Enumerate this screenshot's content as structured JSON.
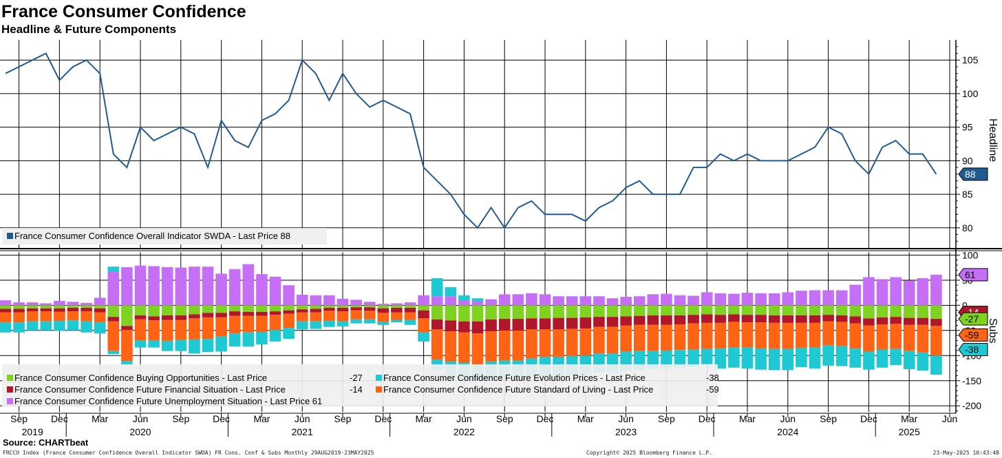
{
  "header": {
    "title": "France Consumer Confidence",
    "subtitle": "Headline & Future Components"
  },
  "footer": {
    "source": "Source: CHARTbeat",
    "index_note": "FRCCO Index (France Consumer Confidence Overall Indicator SWDA) FR Cons. Conf & Subs  Monthly 29AUG2019-23MAY2025",
    "copyright": "Copyright© 2025 Bloomberg Finance L.P.",
    "timestamp": "23-May-2025 10:43:48"
  },
  "colors": {
    "headline": "#1f5a91",
    "buying": "#7ed321",
    "financial": "#b0172a",
    "unemployment": "#c46ff5",
    "evolution_prices": "#1ec9d3",
    "standard_of_living": "#ff6414",
    "grid": "#000000"
  },
  "chart_data": [
    {
      "type": "line",
      "axis_title": "Headline",
      "ylim": [
        77,
        108
      ],
      "yticks": [
        80,
        85,
        90,
        95,
        100,
        105
      ],
      "legend_position": "bottom-left",
      "series": [
        {
          "name": "France Consumer Confidence Overall Indicator SWDA - Last Price 88",
          "last_value": 88,
          "x": [
            "2019-08",
            "2019-09",
            "2019-10",
            "2019-11",
            "2019-12",
            "2020-01",
            "2020-02",
            "2020-03",
            "2020-04",
            "2020-05",
            "2020-06",
            "2020-07",
            "2020-08",
            "2020-09",
            "2020-10",
            "2020-11",
            "2020-12",
            "2021-01",
            "2021-02",
            "2021-03",
            "2021-04",
            "2021-05",
            "2021-06",
            "2021-07",
            "2021-08",
            "2021-09",
            "2021-10",
            "2021-11",
            "2021-12",
            "2022-01",
            "2022-02",
            "2022-03",
            "2022-04",
            "2022-05",
            "2022-06",
            "2022-07",
            "2022-08",
            "2022-09",
            "2022-10",
            "2022-11",
            "2022-12",
            "2023-01",
            "2023-02",
            "2023-03",
            "2023-04",
            "2023-05",
            "2023-06",
            "2023-07",
            "2023-08",
            "2023-09",
            "2023-10",
            "2023-11",
            "2023-12",
            "2024-01",
            "2024-02",
            "2024-03",
            "2024-04",
            "2024-05",
            "2024-06",
            "2024-07",
            "2024-08",
            "2024-09",
            "2024-10",
            "2024-11",
            "2024-12",
            "2025-01",
            "2025-02",
            "2025-03",
            "2025-04",
            "2025-05"
          ],
          "values": [
            103,
            104,
            105,
            106,
            102,
            104,
            105,
            103,
            91,
            89,
            95,
            93,
            94,
            95,
            94,
            89,
            96,
            93,
            92,
            96,
            97,
            99,
            105,
            103,
            99,
            103,
            100,
            98,
            99,
            98,
            97,
            89,
            87,
            85,
            82,
            80,
            83,
            80,
            83,
            84,
            82,
            82,
            82,
            81,
            83,
            84,
            86,
            87,
            85,
            85,
            85,
            89,
            89,
            91,
            90,
            91,
            90,
            90,
            90,
            91,
            92,
            95,
            94,
            90,
            88,
            92,
            93,
            91,
            91,
            88
          ]
        }
      ]
    },
    {
      "type": "bar",
      "stacked": true,
      "axis_title": "Subs",
      "ylim": [
        -212,
        106
      ],
      "yticks": [
        100,
        50,
        0,
        -50,
        -100,
        -150,
        -200
      ],
      "ytick_labels": [
        "100",
        "50",
        "0",
        "-50",
        "-100",
        "-150",
        "-200"
      ],
      "x": [
        "2019-08",
        "2019-09",
        "2019-10",
        "2019-11",
        "2019-12",
        "2020-01",
        "2020-02",
        "2020-03",
        "2020-04",
        "2020-05",
        "2020-06",
        "2020-07",
        "2020-08",
        "2020-09",
        "2020-10",
        "2020-11",
        "2020-12",
        "2021-01",
        "2021-02",
        "2021-03",
        "2021-04",
        "2021-05",
        "2021-06",
        "2021-07",
        "2021-08",
        "2021-09",
        "2021-10",
        "2021-11",
        "2021-12",
        "2022-01",
        "2022-02",
        "2022-03",
        "2022-04",
        "2022-05",
        "2022-06",
        "2022-07",
        "2022-08",
        "2022-09",
        "2022-10",
        "2022-11",
        "2022-12",
        "2023-01",
        "2023-02",
        "2023-03",
        "2023-04",
        "2023-05",
        "2023-06",
        "2023-07",
        "2023-08",
        "2023-09",
        "2023-10",
        "2023-11",
        "2023-12",
        "2024-01",
        "2024-02",
        "2024-03",
        "2024-04",
        "2024-05",
        "2024-06",
        "2024-07",
        "2024-08",
        "2024-09",
        "2024-10",
        "2024-11",
        "2024-12",
        "2025-01",
        "2025-02",
        "2025-03",
        "2025-04",
        "2025-05"
      ],
      "series": [
        {
          "name": "France Consumer Confidence Buying Opportunities - Last Price",
          "last_value": -27,
          "color_key": "buying",
          "values": [
            -7,
            -7,
            -6,
            -6,
            -6,
            -5,
            -5,
            -6,
            -23,
            -41,
            -20,
            -22,
            -20,
            -20,
            -18,
            -15,
            -15,
            -12,
            -13,
            -13,
            -12,
            -10,
            -8,
            -7,
            -5,
            -5,
            -4,
            -4,
            -6,
            -5,
            -5,
            -10,
            -28,
            -30,
            -32,
            -32,
            -28,
            -27,
            -27,
            -26,
            -26,
            -25,
            -25,
            -24,
            -23,
            -23,
            -22,
            -21,
            -20,
            -20,
            -20,
            -19,
            -18,
            -19,
            -18,
            -19,
            -19,
            -20,
            -20,
            -20,
            -20,
            -19,
            -20,
            -22,
            -26,
            -24,
            -23,
            -25,
            -25,
            -27
          ]
        },
        {
          "name": "France Consumer Confidence Future Financial Situation - Last Price",
          "last_value": -14,
          "color_key": "financial",
          "values": [
            -7,
            -7,
            -6,
            -6,
            -7,
            -7,
            -7,
            -8,
            -9,
            -8,
            -8,
            -8,
            -9,
            -9,
            -8,
            -9,
            -9,
            -9,
            -8,
            -8,
            -7,
            -7,
            -6,
            -7,
            -6,
            -7,
            -6,
            -7,
            -9,
            -9,
            -9,
            -16,
            -20,
            -22,
            -22,
            -24,
            -24,
            -23,
            -23,
            -22,
            -22,
            -23,
            -22,
            -22,
            -20,
            -20,
            -18,
            -18,
            -19,
            -19,
            -18,
            -17,
            -17,
            -16,
            -15,
            -15,
            -15,
            -15,
            -15,
            -15,
            -15,
            -13,
            -13,
            -14,
            -14,
            -14,
            -14,
            -14,
            -14,
            -14
          ]
        },
        {
          "name": "France Consumer Confidence Future Standard of Living - Last Price",
          "last_value": -59,
          "color_key": "standard_of_living",
          "values": [
            -20,
            -20,
            -20,
            -20,
            -18,
            -18,
            -20,
            -20,
            -59,
            -62,
            -42,
            -40,
            -42,
            -40,
            -42,
            -43,
            -38,
            -35,
            -33,
            -32,
            -30,
            -28,
            -18,
            -18,
            -20,
            -20,
            -18,
            -17,
            -18,
            -15,
            -15,
            -28,
            -60,
            -60,
            -60,
            -62,
            -60,
            -60,
            -60,
            -58,
            -55,
            -55,
            -54,
            -54,
            -53,
            -53,
            -52,
            -52,
            -52,
            -51,
            -51,
            -52,
            -52,
            -51,
            -51,
            -50,
            -52,
            -52,
            -52,
            -50,
            -49,
            -48,
            -48,
            -50,
            -52,
            -50,
            -50,
            -52,
            -55,
            -59
          ]
        },
        {
          "name": "France Consumer Confidence Future Evolution Prices - Last Price",
          "last_value": -38,
          "color_key": "evolution_prices",
          "values": [
            -20,
            -20,
            -18,
            -18,
            -20,
            -20,
            -22,
            -22,
            -6,
            -8,
            -14,
            -14,
            -20,
            -22,
            -28,
            -26,
            -30,
            -26,
            -28,
            -25,
            -23,
            -22,
            -16,
            -15,
            -12,
            -10,
            -8,
            -8,
            -6,
            -5,
            -10,
            -18,
            -22,
            -28,
            -32,
            -32,
            -34,
            -34,
            -36,
            -36,
            -38,
            -38,
            -38,
            -38,
            -38,
            -38,
            -38,
            -38,
            -36,
            -36,
            -35,
            -35,
            -30,
            -40,
            -40,
            -42,
            -42,
            -42,
            -42,
            -38,
            -42,
            -40,
            -40,
            -38,
            -36,
            -36,
            -32,
            -36,
            -36,
            -38
          ]
        },
        {
          "name": "France Consumer Confidence Future Unemployment Situation - Last Price",
          "last_value": 61,
          "color_key": "unemployment",
          "values": [
            10,
            6,
            6,
            4,
            9,
            7,
            5,
            15,
            67,
            76,
            79,
            78,
            76,
            75,
            77,
            77,
            63,
            72,
            82,
            62,
            57,
            40,
            21,
            20,
            20,
            13,
            11,
            7,
            3,
            4,
            6,
            20,
            18,
            18,
            10,
            8,
            12,
            22,
            22,
            24,
            22,
            18,
            18,
            18,
            18,
            14,
            17,
            18,
            22,
            23,
            20,
            19,
            26,
            24,
            23,
            25,
            24,
            24,
            26,
            29,
            30,
            30,
            30,
            41,
            56,
            52,
            56,
            49,
            54,
            61
          ]
        },
        {
          "name": "",
          "color_key": "evolution_prices",
          "values": [
            0,
            0,
            0,
            0,
            0,
            0,
            0,
            0,
            10,
            0,
            0,
            0,
            0,
            0,
            0,
            0,
            0,
            0,
            0,
            0,
            0,
            0,
            0,
            0,
            0,
            0,
            0,
            0,
            0,
            0,
            0,
            0,
            36,
            18,
            10,
            6,
            0,
            0,
            0,
            0,
            0,
            0,
            0,
            0,
            0,
            0,
            0,
            0,
            0,
            0,
            0,
            0,
            0,
            0,
            0,
            0,
            0,
            0,
            0,
            0,
            0,
            0,
            0,
            0,
            0,
            0,
            0,
            0,
            0,
            0
          ]
        }
      ]
    }
  ],
  "x_axis": {
    "ticks": [
      {
        "month": "Sep",
        "x": "2019-09"
      },
      {
        "month": "Dec",
        "x": "2019-12"
      },
      {
        "month": "Mar",
        "x": "2020-03"
      },
      {
        "month": "Jun",
        "x": "2020-06"
      },
      {
        "month": "Sep",
        "x": "2020-09"
      },
      {
        "month": "Dec",
        "x": "2020-12"
      },
      {
        "month": "Mar",
        "x": "2021-03"
      },
      {
        "month": "Jun",
        "x": "2021-06"
      },
      {
        "month": "Sep",
        "x": "2021-09"
      },
      {
        "month": "Dec",
        "x": "2021-12"
      },
      {
        "month": "Mar",
        "x": "2022-03"
      },
      {
        "month": "Jun",
        "x": "2022-06"
      },
      {
        "month": "Sep",
        "x": "2022-09"
      },
      {
        "month": "Dec",
        "x": "2022-12"
      },
      {
        "month": "Mar",
        "x": "2023-03"
      },
      {
        "month": "Jun",
        "x": "2023-06"
      },
      {
        "month": "Sep",
        "x": "2023-09"
      },
      {
        "month": "Dec",
        "x": "2023-12"
      },
      {
        "month": "Mar",
        "x": "2024-03"
      },
      {
        "month": "Jun",
        "x": "2024-06"
      },
      {
        "month": "Sep",
        "x": "2024-09"
      },
      {
        "month": "Dec",
        "x": "2024-12"
      },
      {
        "month": "Mar",
        "x": "2025-03"
      },
      {
        "month": "Jun",
        "x": "2025-06"
      }
    ],
    "years": [
      {
        "label": "2019",
        "x": "2019-10"
      },
      {
        "label": "2020",
        "x": "2020-06"
      },
      {
        "label": "2021",
        "x": "2021-06"
      },
      {
        "label": "2022",
        "x": "2022-06"
      },
      {
        "label": "2023",
        "x": "2023-06"
      },
      {
        "label": "2024",
        "x": "2024-06"
      },
      {
        "label": "2025",
        "x": "2025-03"
      }
    ],
    "year_boundaries": [
      "2020-01",
      "2021-01",
      "2022-01",
      "2023-01",
      "2024-01",
      "2025-01"
    ]
  },
  "subs_legend_entries": [
    {
      "label": "France Consumer Confidence Buying Opportunities - Last Price",
      "value": "-27",
      "color_key": "buying"
    },
    {
      "label": "France Consumer Confidence Future Evolution Prices - Last Price",
      "value": "-38",
      "color_key": "evolution_prices"
    },
    {
      "label": "France Consumer Confidence Future Financial Situation - Last Price",
      "value": "-14",
      "color_key": "financial"
    },
    {
      "label": "France Consumer Confidence Future Standard of Living - Last Price",
      "value": "-59",
      "color_key": "standard_of_living"
    },
    {
      "label": "France Consumer Confidence Future Unemployment Situation - Last Price 61",
      "value": "",
      "color_key": "unemployment"
    }
  ],
  "value_tags": {
    "headline": "88",
    "subs": [
      {
        "value": "61",
        "level": 61,
        "color_key": "unemployment",
        "text_color": "#000"
      },
      {
        "value": "-14",
        "level": -14,
        "color_key": "financial",
        "text_color": "#fff"
      },
      {
        "value": "-27",
        "level": -27,
        "color_key": "buying",
        "text_color": "#000"
      },
      {
        "value": "-59",
        "level": -59,
        "color_key": "standard_of_living",
        "text_color": "#000"
      },
      {
        "value": "-38",
        "level": -88,
        "color_key": "evolution_prices",
        "text_color": "#000"
      }
    ]
  }
}
